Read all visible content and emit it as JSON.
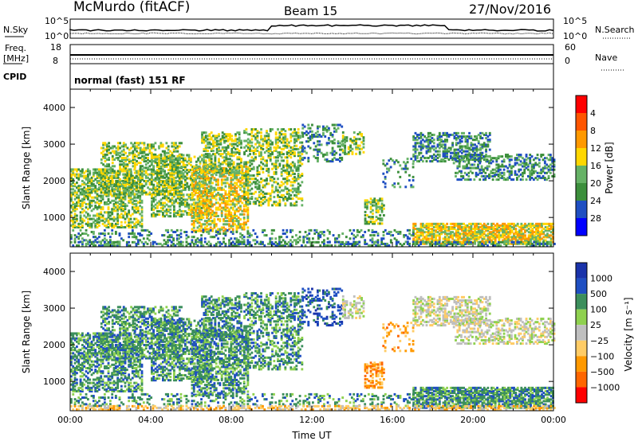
{
  "header": {
    "station": "McMurdo (fitACF)",
    "beam": "Beam 15",
    "date": "27/Nov/2016"
  },
  "status_panels": {
    "nsky_label": "N.Sky",
    "nsearch_label": "N.Search",
    "nsky_ticks": [
      "10^5",
      "10^0"
    ],
    "nsearch_ticks": [
      "10^5",
      "10^0"
    ],
    "freq_label": "Freq.",
    "freq_unit": "[MHz]",
    "freq_ticks": [
      "18",
      "8"
    ],
    "nave_label": "Nave",
    "nave_ticks": [
      "60",
      "0"
    ],
    "cpid_label": "CPID",
    "cpid_text": "normal (fast) 151 RF"
  },
  "colors": {
    "power_scale": [
      "#0000ff",
      "#1f4fc2",
      "#3c8f3c",
      "#66b266",
      "#ffd700",
      "#ff9900",
      "#ff5500",
      "#ff0000"
    ],
    "velocity_scale": [
      "#ff0000",
      "#ff6600",
      "#ff9900",
      "#ffcc66",
      "#bfbfbf",
      "#8fd14f",
      "#3c8f5c",
      "#1f4fc2",
      "#1a33aa"
    ]
  },
  "chart_data": [
    {
      "type": "heatmap",
      "name": "power",
      "xlabel": "",
      "ylabel": "Slant Range [km]",
      "xlim": [
        0,
        24
      ],
      "ylim": [
        200,
        4500
      ],
      "y_ticks": [
        "1000",
        "2000",
        "3000",
        "4000"
      ],
      "colorbar_label": "Power [dB]",
      "colorbar_ticks": [
        "4",
        "8",
        "12",
        "16",
        "20",
        "24",
        "28"
      ]
    },
    {
      "type": "heatmap",
      "name": "velocity",
      "xlabel": "Time UT",
      "ylabel": "Slant Range [km]",
      "xlim": [
        0,
        24
      ],
      "ylim": [
        200,
        4500
      ],
      "x_ticks": [
        "00:00",
        "04:00",
        "08:00",
        "12:00",
        "16:00",
        "20:00",
        "00:00"
      ],
      "y_ticks": [
        "1000",
        "2000",
        "3000",
        "4000"
      ],
      "colorbar_label": "Velocity [m s⁻¹]",
      "colorbar_ticks": [
        "1000",
        "500",
        "100",
        "25",
        "−25",
        "−100",
        "−500",
        "−1000"
      ]
    }
  ]
}
